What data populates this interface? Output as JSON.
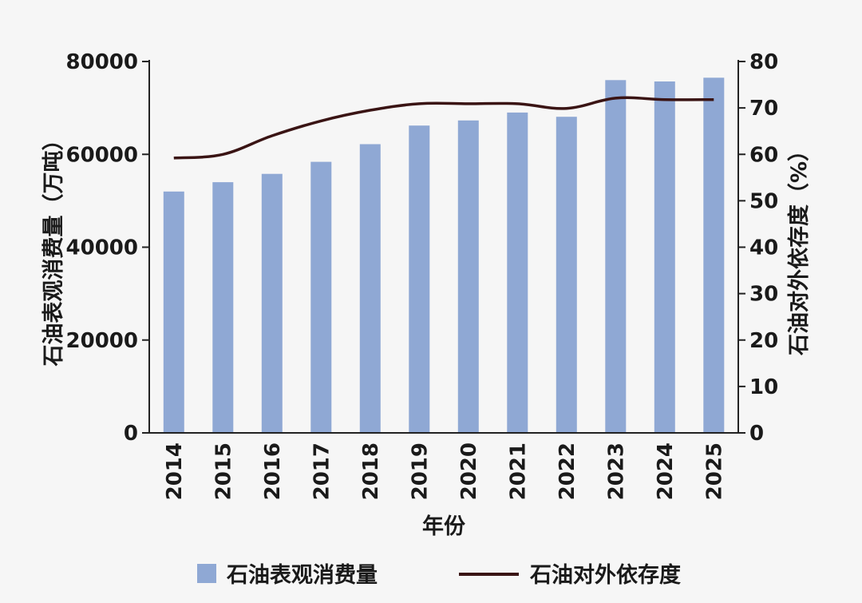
{
  "chart_data": {
    "type": "bar",
    "x_label": "年份",
    "categories": [
      "2014",
      "2015",
      "2016",
      "2017",
      "2018",
      "2019",
      "2020",
      "2021",
      "2022",
      "2023",
      "2024",
      "2025"
    ],
    "series": [
      {
        "name": "石油表观消费量",
        "type": "bar",
        "axis": "left",
        "color": "#8fa8d4",
        "values": [
          52000,
          54000,
          55800,
          58400,
          62200,
          66200,
          67300,
          69000,
          68100,
          76000,
          75700,
          76500
        ]
      },
      {
        "name": "石油对外依存度",
        "type": "line",
        "axis": "right",
        "color": "#3a1414",
        "values": [
          59.2,
          60.0,
          64.0,
          67.2,
          69.5,
          70.9,
          70.9,
          70.9,
          69.9,
          72.1,
          71.8,
          71.8
        ]
      }
    ],
    "y_left": {
      "label": "石油表观消费量（万吨）",
      "range": [
        0,
        80000
      ],
      "ticks": [
        0,
        20000,
        40000,
        60000,
        80000
      ]
    },
    "y_right": {
      "label": "石油对外依存度（%）",
      "range": [
        0,
        80
      ],
      "ticks": [
        0,
        10,
        20,
        30,
        40,
        50,
        60,
        70,
        80
      ]
    },
    "grid": false,
    "legend_position": "bottom"
  }
}
